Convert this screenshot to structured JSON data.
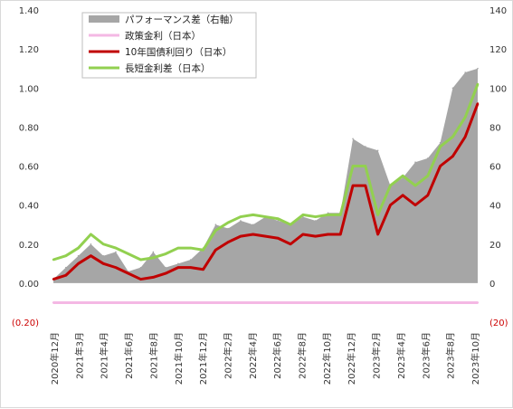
{
  "chart_data": {
    "type": "line",
    "title": "",
    "xlabel": "",
    "ylabel": "",
    "ylim": [
      -0.2,
      1.4
    ],
    "ylim_right": [
      -20,
      140
    ],
    "grid": false,
    "legend_position": "top-left",
    "x": [
      "2020-12",
      "2021-01",
      "2021-02",
      "2021-03",
      "2021-04",
      "2021-05",
      "2021-06",
      "2021-07",
      "2021-08",
      "2021-09",
      "2021-10",
      "2021-11",
      "2021-12",
      "2022-01",
      "2022-02",
      "2022-03",
      "2022-04",
      "2022-05",
      "2022-06",
      "2022-07",
      "2022-08",
      "2022-09",
      "2022-10",
      "2022-11",
      "2022-12",
      "2023-01",
      "2023-02",
      "2023-03",
      "2023-04",
      "2023-05",
      "2023-06",
      "2023-07",
      "2023-08",
      "2023-09",
      "2023-10"
    ],
    "x_tick_labels": [
      "2020年12月",
      "2021年3月",
      "2021年4月",
      "2021年6月",
      "2021年8月",
      "2021年10月",
      "2021年12月",
      "2022年2月",
      "2022年4月",
      "2022年6月",
      "2022年8月",
      "2022年10月",
      "2022年12月",
      "2023年2月",
      "2023年4月",
      "2023年6月",
      "2023年8月",
      "2023年10月"
    ],
    "left_tick_labels": [
      "1.40",
      "1.20",
      "1.00",
      "0.80",
      "0.60",
      "0.40",
      "0.20",
      "0.00",
      "(0.20)"
    ],
    "left_tick_values": [
      1.4,
      1.2,
      1.0,
      0.8,
      0.6,
      0.4,
      0.2,
      0.0,
      -0.2
    ],
    "right_tick_labels": [
      "140",
      "120",
      "100",
      "80",
      "60",
      "40",
      "20",
      "0",
      "(20)"
    ],
    "right_tick_values": [
      140,
      120,
      100,
      80,
      60,
      40,
      20,
      0,
      -20
    ],
    "series": [
      {
        "name": "パフォーマンス差（右軸）",
        "kind": "area",
        "axis": "right",
        "color": "#a6a6a6",
        "values": [
          2,
          8,
          14,
          20,
          14,
          16,
          6,
          8,
          16,
          8,
          10,
          12,
          18,
          30,
          28,
          32,
          30,
          34,
          32,
          30,
          34,
          32,
          36,
          36,
          74,
          70,
          68,
          50,
          54,
          62,
          64,
          72,
          100,
          108,
          110
        ]
      },
      {
        "name": "政策金利（日本）",
        "kind": "line",
        "axis": "left",
        "color": "#f4b8e4",
        "values": [
          -0.1,
          -0.1,
          -0.1,
          -0.1,
          -0.1,
          -0.1,
          -0.1,
          -0.1,
          -0.1,
          -0.1,
          -0.1,
          -0.1,
          -0.1,
          -0.1,
          -0.1,
          -0.1,
          -0.1,
          -0.1,
          -0.1,
          -0.1,
          -0.1,
          -0.1,
          -0.1,
          -0.1,
          -0.1,
          -0.1,
          -0.1,
          -0.1,
          -0.1,
          -0.1,
          -0.1,
          -0.1,
          -0.1,
          -0.1,
          -0.1
        ]
      },
      {
        "name": "10年国債利回り（日本）",
        "kind": "line",
        "axis": "left",
        "color": "#c00000",
        "values": [
          0.02,
          0.04,
          0.1,
          0.14,
          0.1,
          0.08,
          0.05,
          0.02,
          0.03,
          0.05,
          0.08,
          0.08,
          0.07,
          0.17,
          0.21,
          0.24,
          0.25,
          0.24,
          0.23,
          0.2,
          0.25,
          0.24,
          0.25,
          0.25,
          0.5,
          0.5,
          0.25,
          0.4,
          0.45,
          0.4,
          0.45,
          0.6,
          0.65,
          0.75,
          0.92
        ]
      },
      {
        "name": "長短金利差（日本）",
        "kind": "line",
        "axis": "left",
        "color": "#92d050",
        "values": [
          0.12,
          0.14,
          0.18,
          0.25,
          0.2,
          0.18,
          0.15,
          0.12,
          0.13,
          0.15,
          0.18,
          0.18,
          0.17,
          0.27,
          0.31,
          0.34,
          0.35,
          0.34,
          0.33,
          0.3,
          0.35,
          0.34,
          0.35,
          0.35,
          0.6,
          0.6,
          0.35,
          0.5,
          0.55,
          0.5,
          0.55,
          0.7,
          0.75,
          0.85,
          1.02
        ]
      }
    ]
  }
}
